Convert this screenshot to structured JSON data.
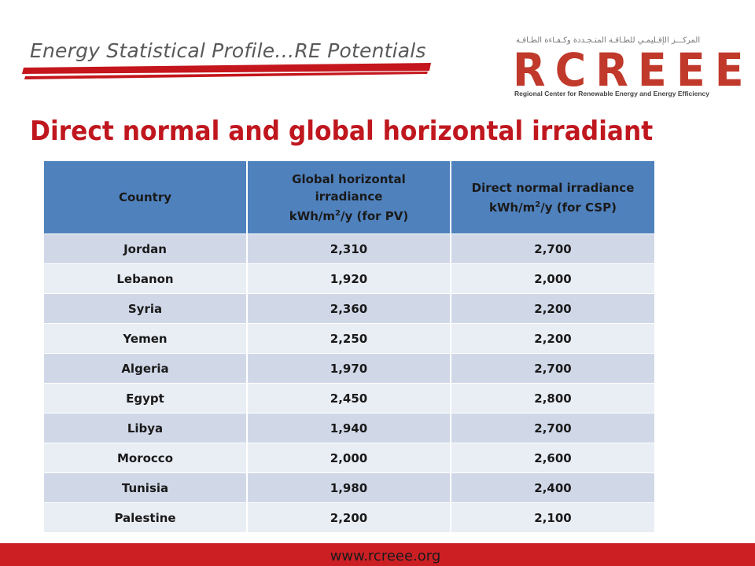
{
  "header": {
    "subtitle": "Energy Statistical Profile…RE Potentials"
  },
  "logo": {
    "arabic_text": "المركـــز الإقـليمـي للطـاقـة المتـجـددة وكـفـاءة الطـاقـة",
    "word": "RCREEE",
    "caption": "Regional Center for Renewable Energy and Energy Efficiency",
    "color": "#c0392b"
  },
  "title": "Direct normal and global horizontal irradiant",
  "table": {
    "headers": {
      "country": "Country",
      "ghi_line1": "Global horizontal irradiance",
      "ghi_unit_pre": "kWh/m",
      "ghi_unit_sup": "2",
      "ghi_unit_post": "/y (for PV)",
      "dni_line1": "Direct normal irradiance",
      "dni_unit_pre": "kWh/m",
      "dni_unit_sup": "2",
      "dni_unit_post": "/y (for CSP)"
    },
    "rows": [
      {
        "country": "Jordan",
        "ghi": "2,310",
        "dni": "2,700"
      },
      {
        "country": "Lebanon",
        "ghi": "1,920",
        "dni": "2,000"
      },
      {
        "country": "Syria",
        "ghi": "2,360",
        "dni": "2,200"
      },
      {
        "country": "Yemen",
        "ghi": "2,250",
        "dni": "2,200"
      },
      {
        "country": "Algeria",
        "ghi": "1,970",
        "dni": "2,700"
      },
      {
        "country": "Egypt",
        "ghi": "2,450",
        "dni": "2,800"
      },
      {
        "country": "Libya",
        "ghi": "1,940",
        "dni": "2,700"
      },
      {
        "country": "Morocco",
        "ghi": "2,000",
        "dni": "2,600"
      },
      {
        "country": "Tunisia",
        "ghi": "1,980",
        "dni": "2,400"
      },
      {
        "country": "Palestine",
        "ghi": "2,200",
        "dni": "2,100"
      }
    ],
    "header_color": "#4f81bd",
    "row_color_odd": "#d0d8e8",
    "row_color_even": "#e9edf4"
  },
  "footer": {
    "url": "www.rcreee.org",
    "color": "#cc1f24"
  }
}
